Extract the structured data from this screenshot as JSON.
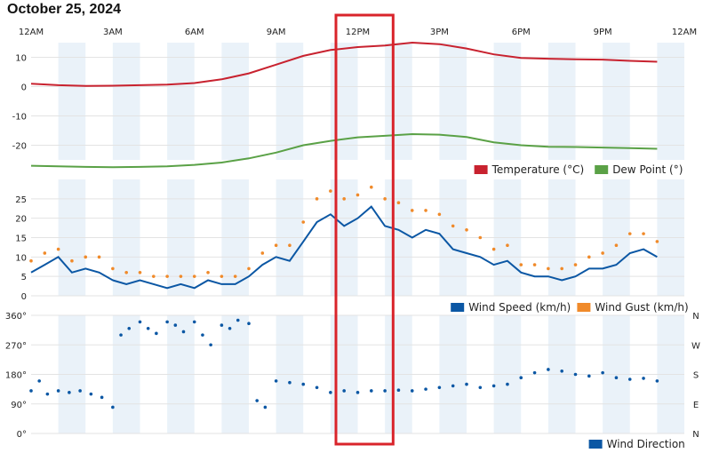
{
  "page": {
    "title": "October 25, 2024"
  },
  "colors": {
    "temperature": "#c8222f",
    "dew_point": "#5aa146",
    "wind_speed": "#0b57a4",
    "wind_gust": "#f08a2a",
    "wind_direction": "#0b57a4",
    "highlight_box": "#d9242b",
    "band": "#eaf2f9"
  },
  "time_axis": {
    "labels": [
      "12AM",
      "3AM",
      "6AM",
      "9AM",
      "12PM",
      "3PM",
      "6PM",
      "9PM",
      "12AM"
    ],
    "range_hours": [
      0,
      24
    ]
  },
  "highlight": {
    "start_hour": 11.2,
    "end_hour": 13.3
  },
  "chart_data": [
    {
      "type": "line",
      "title": "",
      "ylim": [
        -25,
        15
      ],
      "yticks": [
        "10",
        "0",
        "-10",
        "-20"
      ],
      "grid": true,
      "legend_position": "bottom-right",
      "x": [
        0,
        1,
        2,
        3,
        4,
        5,
        6,
        7,
        8,
        9,
        10,
        11,
        12,
        13,
        14,
        15,
        16,
        17,
        18,
        19,
        20,
        21,
        22,
        23
      ],
      "series": [
        {
          "name": "Temperature (°C)",
          "color_key": "temperature",
          "values": [
            1,
            0.5,
            0.2,
            0.3,
            0.5,
            0.7,
            1.2,
            2.5,
            4.5,
            7.5,
            10.5,
            12.5,
            13.5,
            14,
            15,
            14.5,
            13,
            11,
            9.8,
            9.5,
            9.3,
            9.2,
            8.8,
            8.5
          ]
        },
        {
          "name": "Dew Point (°)",
          "color_key": "dew_point",
          "values": [
            -27,
            -27.2,
            -27.4,
            -27.5,
            -27.4,
            -27.2,
            -26.7,
            -25.9,
            -24.5,
            -22.5,
            -20,
            -18.5,
            -17.3,
            -16.8,
            -16.2,
            -16.4,
            -17.2,
            -19,
            -20,
            -20.5,
            -20.6,
            -20.8,
            -21,
            -21.2
          ]
        }
      ]
    },
    {
      "type": "line",
      "title": "",
      "ylim": [
        0,
        30
      ],
      "yticks": [
        "25",
        "20",
        "15",
        "10",
        "5",
        "0"
      ],
      "grid": true,
      "legend_position": "bottom-right",
      "x": [
        0,
        0.5,
        1,
        1.5,
        2,
        2.5,
        3,
        3.5,
        4,
        4.5,
        5,
        5.5,
        6,
        6.5,
        7,
        7.5,
        8,
        8.5,
        9,
        9.5,
        10,
        10.5,
        11,
        11.5,
        12,
        12.5,
        13,
        13.5,
        14,
        14.5,
        15,
        15.5,
        16,
        16.5,
        17,
        17.5,
        18,
        18.5,
        19,
        19.5,
        20,
        20.5,
        21,
        21.5,
        22,
        22.5,
        23
      ],
      "series": [
        {
          "name": "Wind Speed (km/h)",
          "color_key": "wind_speed",
          "values": [
            6,
            8,
            10,
            6,
            7,
            6,
            4,
            3,
            4,
            3,
            2,
            3,
            2,
            4,
            3,
            3,
            5,
            8,
            10,
            9,
            14,
            19,
            21,
            18,
            20,
            23,
            18,
            17,
            15,
            17,
            16,
            12,
            11,
            10,
            8,
            9,
            6,
            5,
            5,
            4,
            5,
            7,
            7,
            8,
            11,
            12,
            10
          ]
        },
        {
          "name": "Wind Gust (km/h)",
          "color_key": "wind_gust",
          "render": "dots",
          "values": [
            9,
            11,
            12,
            9,
            10,
            10,
            7,
            6,
            6,
            5,
            5,
            5,
            5,
            6,
            5,
            5,
            7,
            11,
            13,
            13,
            19,
            25,
            27,
            25,
            26,
            28,
            25,
            24,
            22,
            22,
            21,
            18,
            17,
            15,
            12,
            13,
            8,
            8,
            7,
            7,
            8,
            10,
            11,
            13,
            16,
            16,
            14
          ]
        }
      ]
    },
    {
      "type": "scatter",
      "title": "",
      "ylim": [
        0,
        360
      ],
      "yticks": [
        "360°",
        "270°",
        "180°",
        "90°",
        "0°"
      ],
      "right_ticks": [
        "N",
        "W",
        "S",
        "E",
        "N"
      ],
      "grid": true,
      "legend_position": "bottom-right",
      "series": [
        {
          "name": "Wind Direction",
          "color_key": "wind_direction",
          "points": [
            [
              0,
              130
            ],
            [
              0.3,
              160
            ],
            [
              0.6,
              120
            ],
            [
              1,
              130
            ],
            [
              1.4,
              125
            ],
            [
              1.8,
              130
            ],
            [
              2.2,
              120
            ],
            [
              2.6,
              110
            ],
            [
              3,
              80
            ],
            [
              3.3,
              300
            ],
            [
              3.6,
              320
            ],
            [
              4,
              340
            ],
            [
              4.3,
              320
            ],
            [
              4.6,
              305
            ],
            [
              5,
              340
            ],
            [
              5.3,
              330
            ],
            [
              5.6,
              310
            ],
            [
              6,
              340
            ],
            [
              6.3,
              300
            ],
            [
              6.6,
              270
            ],
            [
              7,
              330
            ],
            [
              7.3,
              320
            ],
            [
              7.6,
              345
            ],
            [
              8,
              335
            ],
            [
              8.3,
              100
            ],
            [
              8.6,
              80
            ],
            [
              9,
              160
            ],
            [
              9.5,
              155
            ],
            [
              10,
              150
            ],
            [
              10.5,
              140
            ],
            [
              11,
              125
            ],
            [
              11.5,
              130
            ],
            [
              12,
              125
            ],
            [
              12.5,
              130
            ],
            [
              13,
              130
            ],
            [
              13.5,
              132
            ],
            [
              14,
              130
            ],
            [
              14.5,
              135
            ],
            [
              15,
              140
            ],
            [
              15.5,
              145
            ],
            [
              16,
              150
            ],
            [
              16.5,
              140
            ],
            [
              17,
              145
            ],
            [
              17.5,
              150
            ],
            [
              18,
              170
            ],
            [
              18.5,
              185
            ],
            [
              19,
              195
            ],
            [
              19.5,
              190
            ],
            [
              20,
              180
            ],
            [
              20.5,
              175
            ],
            [
              21,
              185
            ],
            [
              21.5,
              170
            ],
            [
              22,
              165
            ],
            [
              22.5,
              168
            ],
            [
              23,
              160
            ]
          ]
        }
      ]
    }
  ]
}
